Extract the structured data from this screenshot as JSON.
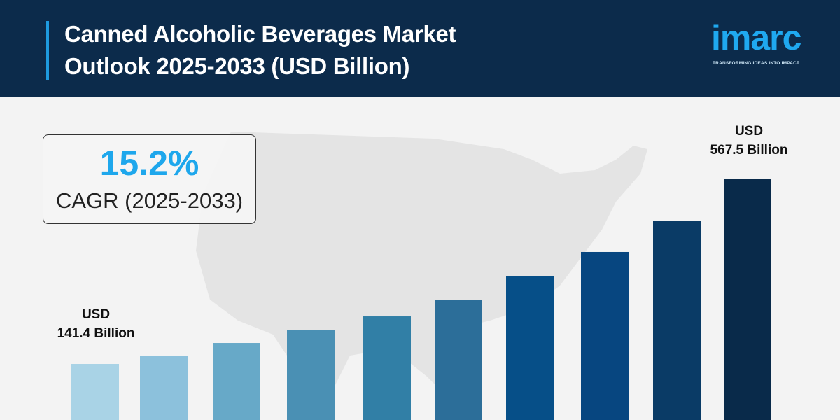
{
  "header": {
    "title_line1": "Canned Alcoholic Beverages Market",
    "title_line2": "Outlook 2025-2033 (USD Billion)",
    "logo_word": "imarc",
    "logo_tagline": "TRANSFORMING IDEAS INTO IMPACT"
  },
  "cagr": {
    "value": "15.2%",
    "label": "CAGR (2025-2033)"
  },
  "colors": {
    "header_bg": "#0c2b4b",
    "accent": "#1ea7ec",
    "background": "#f3f3f3",
    "map": "#e4e4e4"
  },
  "chart_data": {
    "type": "bar",
    "title": "Canned Alcoholic Beverages Market Outlook 2025-2033 (USD Billion)",
    "values": [
      141.4,
      160.7,
      189.6,
      218.6,
      250.7,
      289.3,
      344.0,
      398.7,
      469.5,
      567.5
    ],
    "bar_colors": [
      "#a9d3e6",
      "#8cc1dc",
      "#67a9c8",
      "#4a90b4",
      "#317fa6",
      "#2c6e99",
      "#064f88",
      "#074680",
      "#0a3b66",
      "#092a4a"
    ],
    "annotations": [
      {
        "index": 0,
        "line1": "USD",
        "line2": "141.4 Billion"
      },
      {
        "index": 9,
        "line1": "USD",
        "line2": "567.5 Billion"
      }
    ],
    "grid": false,
    "legend": "none"
  }
}
